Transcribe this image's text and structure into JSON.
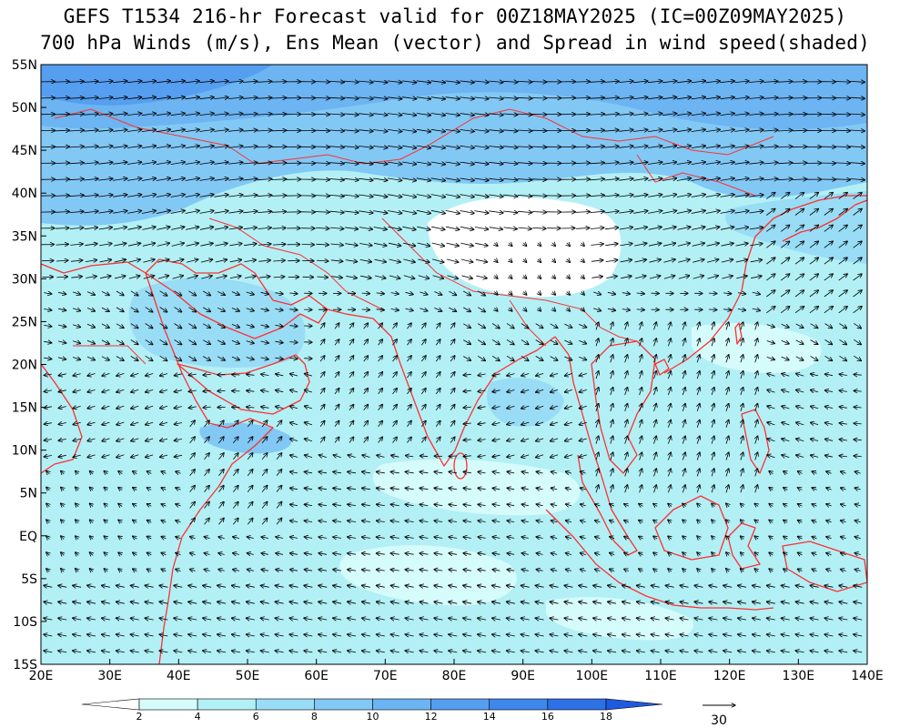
{
  "title": {
    "line1": "GEFS T1534 216-hr Forecast valid for 00Z18MAY2025 (IC=00Z09MAY2025)",
    "line2": "700 hPa Winds (m/s), Ens Mean (vector) and Spread in wind speed(shaded)"
  },
  "map": {
    "lon_range": [
      20,
      140
    ],
    "lat_range": [
      -15,
      55
    ],
    "x_ticks": [
      "20E",
      "30E",
      "40E",
      "50E",
      "60E",
      "70E",
      "80E",
      "90E",
      "100E",
      "110E",
      "120E",
      "130E",
      "140E"
    ],
    "y_ticks": [
      "55N",
      "50N",
      "45N",
      "40N",
      "35N",
      "30N",
      "25N",
      "20N",
      "15N",
      "10N",
      "5N",
      "EQ",
      "5S",
      "10S",
      "15S"
    ],
    "coastline_color": "#ff3030",
    "vector_color": "#000000"
  },
  "colorbar": {
    "labels": [
      "2",
      "4",
      "6",
      "8",
      "10",
      "12",
      "14",
      "16",
      "18"
    ],
    "colors": [
      "#ffffff",
      "#d6fbfb",
      "#b2f0f6",
      "#99dcf5",
      "#82c8f5",
      "#6cb4f2",
      "#559ef0",
      "#3e87ec",
      "#2e70e6",
      "#1e5ae0"
    ]
  },
  "reference_vector": {
    "label": "30"
  }
}
